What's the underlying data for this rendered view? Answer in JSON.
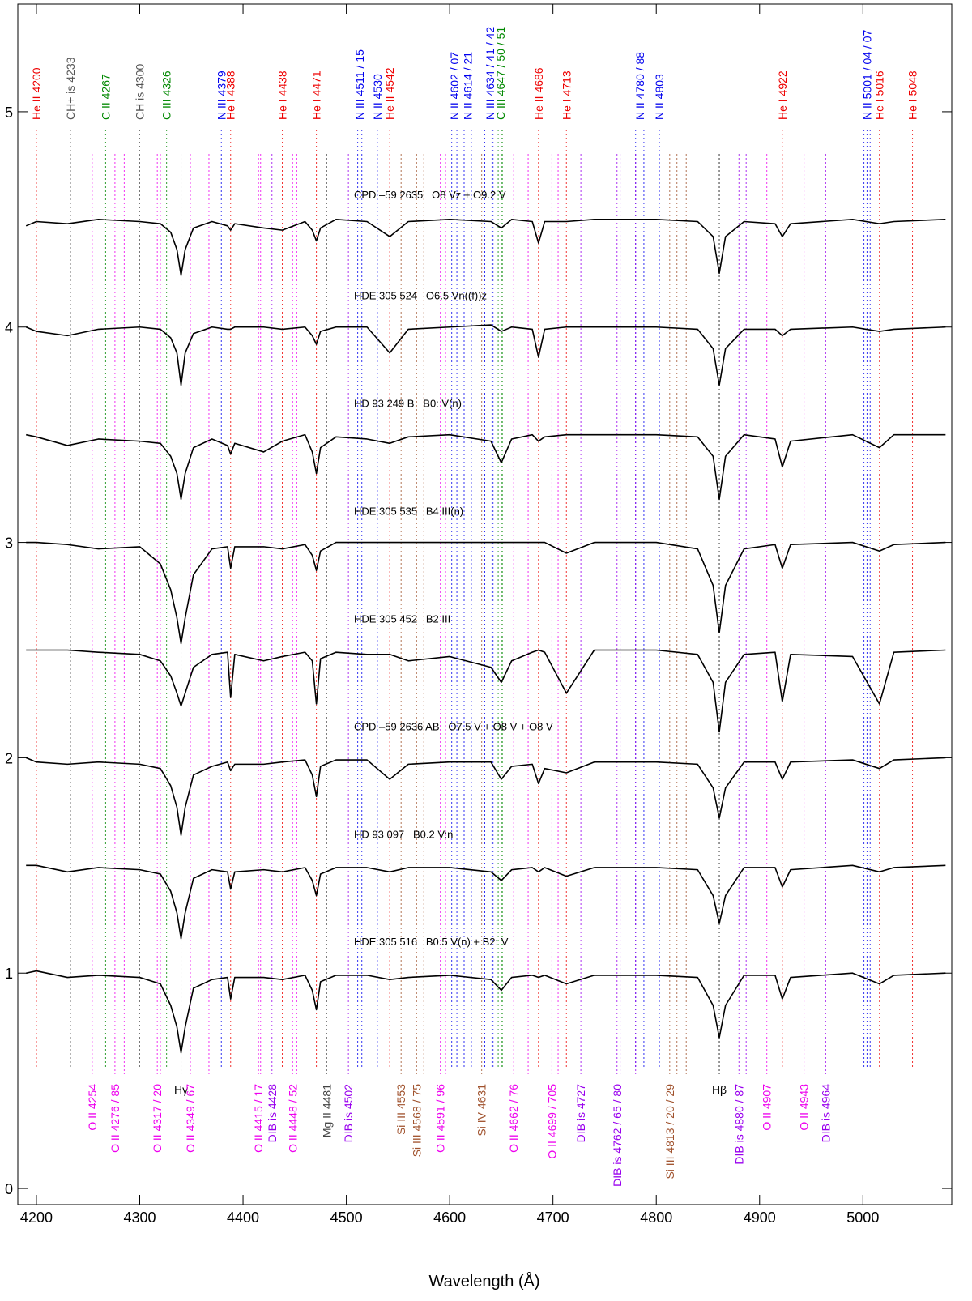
{
  "chart_data": {
    "type": "line",
    "x_label": "Wavelength (Å)",
    "xlim": [
      4182,
      5086
    ],
    "ylim": [
      -0.075,
      5.5
    ],
    "xticks": [
      4200,
      4300,
      4400,
      4500,
      4600,
      4700,
      4800,
      4900,
      5000
    ],
    "yticks": [
      0,
      1,
      2,
      3,
      4,
      5
    ],
    "x": [
      4190,
      4200,
      4230,
      4260,
      4300,
      4320,
      4330,
      4336,
      4340,
      4344,
      4352,
      4370,
      4385,
      4388,
      4392,
      4420,
      4438,
      4460,
      4467,
      4471,
      4475,
      4490,
      4520,
      4542,
      4560,
      4600,
      4640,
      4650,
      4660,
      4680,
      4686,
      4692,
      4713,
      4740,
      4800,
      4840,
      4855,
      4861,
      4867,
      4885,
      4915,
      4922,
      4930,
      4990,
      5016,
      5030,
      5080
    ],
    "series": [
      {
        "name": "CPD –59 2635   O8 Vz + O9.2 V",
        "color": "#000000",
        "values": [
          4.47,
          4.49,
          4.48,
          4.5,
          4.49,
          4.48,
          4.44,
          4.36,
          4.24,
          4.36,
          4.46,
          4.49,
          4.47,
          4.45,
          4.48,
          4.46,
          4.45,
          4.49,
          4.45,
          4.4,
          4.46,
          4.5,
          4.49,
          4.42,
          4.49,
          4.5,
          4.49,
          4.46,
          4.5,
          4.49,
          4.39,
          4.49,
          4.49,
          4.5,
          4.5,
          4.49,
          4.42,
          4.25,
          4.42,
          4.49,
          4.48,
          4.42,
          4.48,
          4.5,
          4.48,
          4.49,
          4.5
        ]
      },
      {
        "name": "HDE 305 524   O6.5 Vn((f))z",
        "color": "#000000",
        "values": [
          4.0,
          3.98,
          3.96,
          3.99,
          4.0,
          3.99,
          3.95,
          3.88,
          3.73,
          3.88,
          3.97,
          4.0,
          3.99,
          3.99,
          4.0,
          4.0,
          3.99,
          4.0,
          3.96,
          3.92,
          3.98,
          4.0,
          4.0,
          3.88,
          3.99,
          4.0,
          4.01,
          3.98,
          4.0,
          3.99,
          3.86,
          3.99,
          4.0,
          4.0,
          4.0,
          3.99,
          3.9,
          3.73,
          3.9,
          3.99,
          3.99,
          3.96,
          3.99,
          4.0,
          3.98,
          3.99,
          4.0
        ]
      },
      {
        "name": "HD 93 249 B   B0: V(n)",
        "color": "#000000",
        "values": [
          3.5,
          3.49,
          3.45,
          3.48,
          3.47,
          3.46,
          3.4,
          3.32,
          3.2,
          3.32,
          3.44,
          3.48,
          3.45,
          3.41,
          3.46,
          3.42,
          3.47,
          3.5,
          3.42,
          3.32,
          3.44,
          3.49,
          3.48,
          3.46,
          3.49,
          3.5,
          3.47,
          3.37,
          3.48,
          3.5,
          3.47,
          3.49,
          3.5,
          3.5,
          3.5,
          3.49,
          3.4,
          3.2,
          3.4,
          3.5,
          3.48,
          3.35,
          3.47,
          3.5,
          3.44,
          3.5,
          3.5
        ]
      },
      {
        "name": "HDE 305 535   B4 III(n)",
        "color": "#000000",
        "values": [
          3.0,
          3.0,
          2.99,
          2.97,
          2.98,
          2.9,
          2.78,
          2.65,
          2.53,
          2.65,
          2.85,
          2.97,
          2.98,
          2.88,
          2.98,
          2.98,
          2.97,
          2.99,
          2.94,
          2.87,
          2.96,
          3.0,
          3.0,
          3.0,
          3.0,
          3.0,
          3.0,
          3.0,
          3.0,
          3.0,
          3.0,
          3.0,
          2.95,
          3.0,
          3.0,
          2.97,
          2.8,
          2.58,
          2.8,
          2.97,
          2.99,
          2.88,
          2.99,
          3.0,
          2.96,
          2.99,
          3.0
        ]
      },
      {
        "name": "HDE 305 452   B2 III",
        "color": "#000000",
        "values": [
          2.5,
          2.5,
          2.5,
          2.49,
          2.48,
          2.45,
          2.38,
          2.3,
          2.24,
          2.3,
          2.42,
          2.48,
          2.49,
          2.28,
          2.48,
          2.45,
          2.47,
          2.49,
          2.45,
          2.25,
          2.46,
          2.49,
          2.48,
          2.48,
          2.45,
          2.47,
          2.42,
          2.35,
          2.45,
          2.49,
          2.5,
          2.49,
          2.3,
          2.5,
          2.5,
          2.48,
          2.35,
          2.12,
          2.35,
          2.48,
          2.49,
          2.26,
          2.48,
          2.47,
          2.25,
          2.49,
          2.5
        ]
      },
      {
        "name": "CPD –59 2636 AB   O7.5 V + O8 V + O8 V",
        "color": "#000000",
        "values": [
          2.0,
          1.98,
          1.97,
          1.98,
          1.97,
          1.95,
          1.87,
          1.77,
          1.64,
          1.77,
          1.92,
          1.96,
          1.98,
          1.94,
          1.97,
          1.97,
          1.98,
          1.99,
          1.92,
          1.82,
          1.96,
          1.99,
          1.99,
          1.9,
          1.97,
          1.98,
          1.98,
          1.9,
          1.96,
          1.97,
          1.88,
          1.95,
          1.93,
          1.98,
          1.98,
          1.97,
          1.86,
          1.72,
          1.86,
          1.98,
          1.98,
          1.9,
          1.98,
          1.99,
          1.95,
          1.99,
          2.0
        ]
      },
      {
        "name": "HD 93 097   B0.2 V:n",
        "color": "#000000",
        "values": [
          1.5,
          1.5,
          1.47,
          1.49,
          1.48,
          1.46,
          1.38,
          1.28,
          1.16,
          1.28,
          1.44,
          1.48,
          1.47,
          1.39,
          1.47,
          1.48,
          1.47,
          1.49,
          1.43,
          1.36,
          1.46,
          1.49,
          1.49,
          1.47,
          1.49,
          1.49,
          1.47,
          1.43,
          1.48,
          1.49,
          1.47,
          1.49,
          1.45,
          1.49,
          1.49,
          1.48,
          1.36,
          1.23,
          1.36,
          1.49,
          1.49,
          1.4,
          1.48,
          1.5,
          1.47,
          1.49,
          1.5
        ]
      },
      {
        "name": "HDE 305 516   B0.5 V(n) + B2: V",
        "color": "#000000",
        "values": [
          1.0,
          1.01,
          0.98,
          0.99,
          0.98,
          0.95,
          0.85,
          0.75,
          0.63,
          0.75,
          0.93,
          0.97,
          0.98,
          0.88,
          0.98,
          0.98,
          0.97,
          0.99,
          0.92,
          0.83,
          0.96,
          0.99,
          0.99,
          0.97,
          0.98,
          0.99,
          0.97,
          0.92,
          0.98,
          0.99,
          0.98,
          0.99,
          0.95,
          0.99,
          0.99,
          0.98,
          0.85,
          0.7,
          0.85,
          0.99,
          0.99,
          0.88,
          0.98,
          1.0,
          0.95,
          0.99,
          1.0
        ]
      }
    ],
    "top_labels": [
      {
        "text": "He II 4200",
        "x": [
          4200
        ],
        "color": "#ee0000"
      },
      {
        "text": "CH+ is 4233",
        "x": [
          4233
        ],
        "color": "#555555"
      },
      {
        "text": "C II 4267",
        "x": [
          4267
        ],
        "color": "#008800"
      },
      {
        "text": "CH is 4300",
        "x": [
          4300
        ],
        "color": "#555555"
      },
      {
        "text": "C III 4326",
        "x": [
          4326
        ],
        "color": "#008800"
      },
      {
        "text": "N III 4379",
        "x": [
          4379
        ],
        "color": "#0000ee"
      },
      {
        "text": "He I 4388",
        "x": [
          4388
        ],
        "color": "#ee0000"
      },
      {
        "text": "He I 4438",
        "x": [
          4438
        ],
        "color": "#ee0000"
      },
      {
        "text": "He I 4471",
        "x": [
          4471
        ],
        "color": "#ee0000"
      },
      {
        "text": "N III 4511 / 15",
        "x": [
          4511,
          4515
        ],
        "color": "#0000ee"
      },
      {
        "text": "N II 4530",
        "x": [
          4530
        ],
        "color": "#0000ee"
      },
      {
        "text": "He II 4542",
        "x": [
          4542
        ],
        "color": "#ee0000"
      },
      {
        "text": "N II 4602 / 07",
        "x": [
          4602,
          4607
        ],
        "color": "#0000ee"
      },
      {
        "text": "N II 4614 / 21",
        "x": [
          4614,
          4621
        ],
        "color": "#0000ee"
      },
      {
        "text": "N III 4634 / 41 / 42",
        "x": [
          4634,
          4641,
          4642
        ],
        "color": "#0000ee"
      },
      {
        "text": "C III 4647 / 50 / 51",
        "x": [
          4647,
          4650,
          4651
        ],
        "color": "#008800"
      },
      {
        "text": "He II 4686",
        "x": [
          4686
        ],
        "color": "#ee0000"
      },
      {
        "text": "He I 4713",
        "x": [
          4713
        ],
        "color": "#ee0000"
      },
      {
        "text": "N II 4780 / 88",
        "x": [
          4780,
          4788
        ],
        "color": "#0000ee"
      },
      {
        "text": "N II 4803",
        "x": [
          4803
        ],
        "color": "#0000ee"
      },
      {
        "text": "He I 4922",
        "x": [
          4922
        ],
        "color": "#ee0000"
      },
      {
        "text": "N II 5001 / 04 / 07",
        "x": [
          5001,
          5004,
          5007
        ],
        "color": "#0000ee"
      },
      {
        "text": "He I 5016",
        "x": [
          5016
        ],
        "color": "#ee0000"
      },
      {
        "text": "He I 5048",
        "x": [
          5048
        ],
        "color": "#ee0000"
      }
    ],
    "bottom_labels": [
      {
        "text": "O II 4254",
        "x": [
          4254
        ],
        "color": "#ee00ee"
      },
      {
        "text": "O II 4276 / 85",
        "x": [
          4276,
          4285
        ],
        "color": "#ee00ee"
      },
      {
        "text": "O II 4317 / 20",
        "x": [
          4317,
          4320
        ],
        "color": "#ee00ee"
      },
      {
        "text": "Hγ",
        "x": [
          4340
        ],
        "color": "#000000"
      },
      {
        "text": "O II 4349 / 67",
        "x": [
          4349,
          4367
        ],
        "color": "#ee00ee"
      },
      {
        "text": "O II 4415 / 17",
        "x": [
          4415,
          4417
        ],
        "color": "#ee00ee"
      },
      {
        "text": "DIB is 4428",
        "x": [
          4428
        ],
        "color": "#9900ee"
      },
      {
        "text": "O II 4448 / 52",
        "x": [
          4448,
          4452
        ],
        "color": "#ee00ee"
      },
      {
        "text": "Mg II 4481",
        "x": [
          4481
        ],
        "color": "#444444"
      },
      {
        "text": "DIB is 4502",
        "x": [
          4502
        ],
        "color": "#9900ee"
      },
      {
        "text": "Si III 4553",
        "x": [
          4553
        ],
        "color": "#a0522d"
      },
      {
        "text": "Si III 4568 / 75",
        "x": [
          4568,
          4575
        ],
        "color": "#a0522d"
      },
      {
        "text": "O II 4591 / 96",
        "x": [
          4591,
          4596
        ],
        "color": "#ee00ee"
      },
      {
        "text": "Si IV 4631",
        "x": [
          4631
        ],
        "color": "#a0522d"
      },
      {
        "text": "O II 4662 / 76",
        "x": [
          4662,
          4676
        ],
        "color": "#ee00ee"
      },
      {
        "text": "O II 4699 / 705",
        "x": [
          4699,
          4705
        ],
        "color": "#ee00ee"
      },
      {
        "text": "DIB is 4727",
        "x": [
          4727
        ],
        "color": "#9900ee"
      },
      {
        "text": "DIB is 4762 / 65 / 80",
        "x": [
          4762,
          4765,
          4780
        ],
        "color": "#9900ee"
      },
      {
        "text": "Si III 4813 / 20 / 29",
        "x": [
          4813,
          4820,
          4829
        ],
        "color": "#a0522d"
      },
      {
        "text": "Hβ",
        "x": [
          4861
        ],
        "color": "#000000"
      },
      {
        "text": "DIB is 4880 / 87",
        "x": [
          4880,
          4887
        ],
        "color": "#9900ee"
      },
      {
        "text": "O II 4907",
        "x": [
          4907
        ],
        "color": "#ee00ee"
      },
      {
        "text": "O II 4943",
        "x": [
          4943
        ],
        "color": "#ee00ee"
      },
      {
        "text": "DIB is 4964",
        "x": [
          4964
        ],
        "color": "#9900ee"
      }
    ]
  }
}
